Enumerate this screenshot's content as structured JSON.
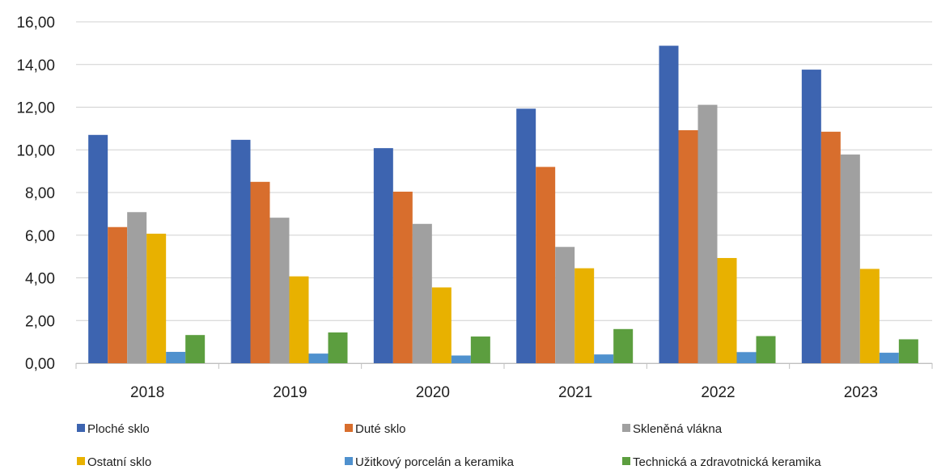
{
  "chart_data": {
    "type": "bar",
    "categories": [
      "2018",
      "2019",
      "2020",
      "2021",
      "2022",
      "2023"
    ],
    "series": [
      {
        "name": "Ploché sklo",
        "color": "#3d64b0",
        "values": [
          10.7,
          10.47,
          10.08,
          11.93,
          14.88,
          13.76
        ]
      },
      {
        "name": "Duté sklo",
        "color": "#d86e2d",
        "values": [
          6.38,
          8.5,
          8.04,
          9.2,
          10.92,
          10.85
        ]
      },
      {
        "name": "Skleněná vlákna",
        "color": "#a0a0a0",
        "values": [
          7.08,
          6.82,
          6.53,
          5.45,
          12.11,
          9.78
        ]
      },
      {
        "name": "Ostatní sklo",
        "color": "#e8b100",
        "values": [
          6.07,
          4.07,
          3.55,
          4.45,
          4.93,
          4.42
        ]
      },
      {
        "name": "Užitkový porcelán a keramika",
        "color": "#4f91ce",
        "values": [
          0.53,
          0.45,
          0.36,
          0.41,
          0.52,
          0.49
        ]
      },
      {
        "name": "Technická a zdravotnická keramika",
        "color": "#5c9e3f",
        "values": [
          1.32,
          1.44,
          1.25,
          1.6,
          1.27,
          1.12
        ]
      }
    ],
    "ylim": [
      0,
      16
    ],
    "yticks": [
      "0,00",
      "2,00",
      "4,00",
      "6,00",
      "8,00",
      "10,00",
      "12,00",
      "14,00",
      "16,00"
    ],
    "grid": true,
    "legend_position": "bottom",
    "title": "",
    "xlabel": "",
    "ylabel": ""
  }
}
